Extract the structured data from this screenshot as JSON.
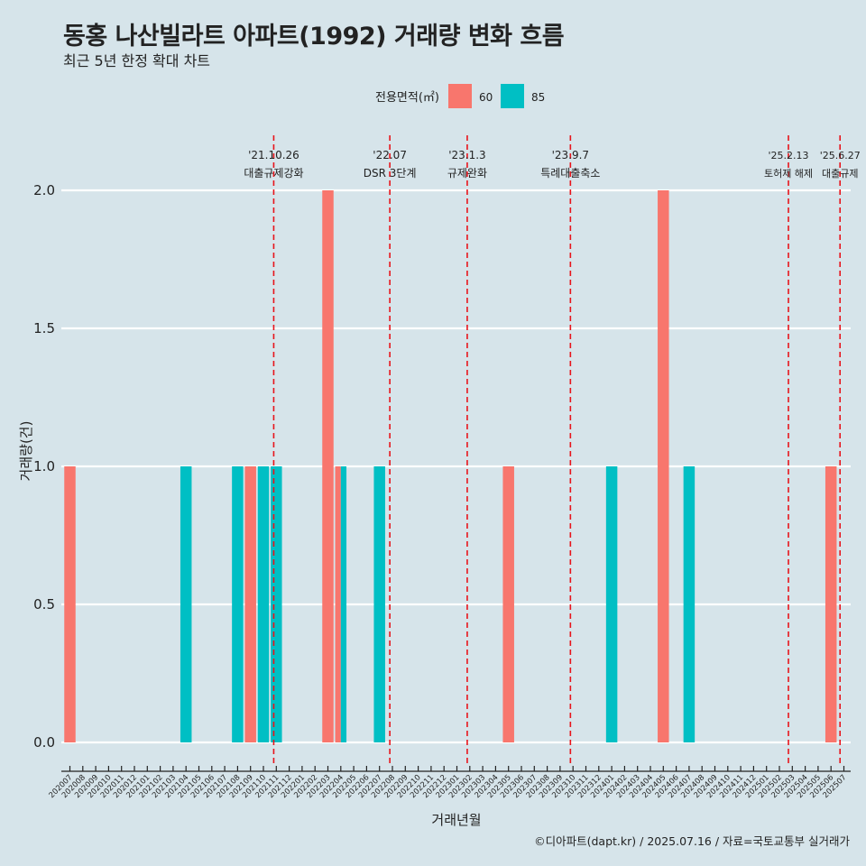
{
  "header": {
    "title": "동홍 나산빌라트 아파트(1992) 거래량 변화 흐름",
    "subtitle": "최근 5년 한정 확대 차트"
  },
  "legend": {
    "title": "전용면적(㎡)",
    "items": [
      {
        "label": "60",
        "color": "#f8766d"
      },
      {
        "label": "85",
        "color": "#00bfc4"
      }
    ]
  },
  "caption": "©디아파트(dapt.kr) / 2025.07.16 / 자료=국토교통부 실거래가",
  "chart_data": {
    "type": "bar",
    "xlabel": "거래년월",
    "ylabel": "거래량(건)",
    "ylim": [
      0,
      2
    ],
    "yticks": [
      0.0,
      0.5,
      1.0,
      1.5,
      2.0
    ],
    "ytick_labels": [
      "0.0",
      "0.5",
      "1.0",
      "1.5",
      "2.0"
    ],
    "grid": true,
    "legend_position": "top",
    "categories": [
      "202007",
      "202008",
      "202009",
      "202010",
      "202011",
      "202012",
      "202101",
      "202102",
      "202103",
      "202104",
      "202105",
      "202106",
      "202107",
      "202108",
      "202109",
      "202110",
      "202111",
      "202112",
      "202201",
      "202202",
      "202203",
      "202204",
      "202205",
      "202206",
      "202207",
      "202208",
      "202209",
      "202210",
      "202211",
      "202212",
      "202301",
      "202302",
      "202303",
      "202304",
      "202305",
      "202306",
      "202307",
      "202308",
      "202309",
      "202310",
      "202311",
      "202312",
      "202401",
      "202402",
      "202403",
      "202404",
      "202405",
      "202406",
      "202407",
      "202408",
      "202409",
      "202410",
      "202411",
      "202412",
      "202501",
      "202502",
      "202503",
      "202504",
      "202505",
      "202506",
      "202507"
    ],
    "series": [
      {
        "name": "60",
        "color": "#f8766d",
        "values": [
          1,
          0,
          0,
          0,
          0,
          0,
          0,
          0,
          0,
          0,
          0,
          0,
          0,
          0,
          1,
          0,
          0,
          0,
          0,
          0,
          2,
          1,
          0,
          0,
          0,
          0,
          0,
          0,
          0,
          0,
          0,
          0,
          0,
          0,
          1,
          0,
          0,
          0,
          0,
          0,
          0,
          0,
          0,
          0,
          0,
          0,
          2,
          0,
          0,
          0,
          0,
          0,
          0,
          0,
          0,
          0,
          0,
          0,
          0,
          1,
          0
        ]
      },
      {
        "name": "85",
        "color": "#00bfc4",
        "values": [
          0,
          0,
          0,
          0,
          0,
          0,
          0,
          0,
          0,
          1,
          0,
          0,
          0,
          1,
          0,
          1,
          1,
          0,
          0,
          0,
          0,
          1,
          0,
          0,
          1,
          0,
          0,
          0,
          0,
          0,
          0,
          0,
          0,
          0,
          0,
          0,
          0,
          0,
          0,
          0,
          0,
          0,
          1,
          0,
          0,
          0,
          0,
          0,
          1,
          0,
          0,
          0,
          0,
          0,
          0,
          0,
          0,
          0,
          0,
          0,
          0
        ]
      }
    ],
    "annotations": [
      {
        "date": "'21.10.26",
        "label": "대출규제강화",
        "x_index": 15.8
      },
      {
        "date": "'22.07",
        "label": "DSR 3단계",
        "x_index": 24.8
      },
      {
        "date": "'23.1.3",
        "label": "규제완화",
        "x_index": 30.8
      },
      {
        "date": "'23.9.7",
        "label": "특례대출축소",
        "x_index": 38.8
      },
      {
        "date": "'25.2.13",
        "label": "토허제 해제",
        "x_index": 55.7
      },
      {
        "date": "'25.6.27",
        "label": "대출규제",
        "x_index": 59.7
      }
    ]
  }
}
